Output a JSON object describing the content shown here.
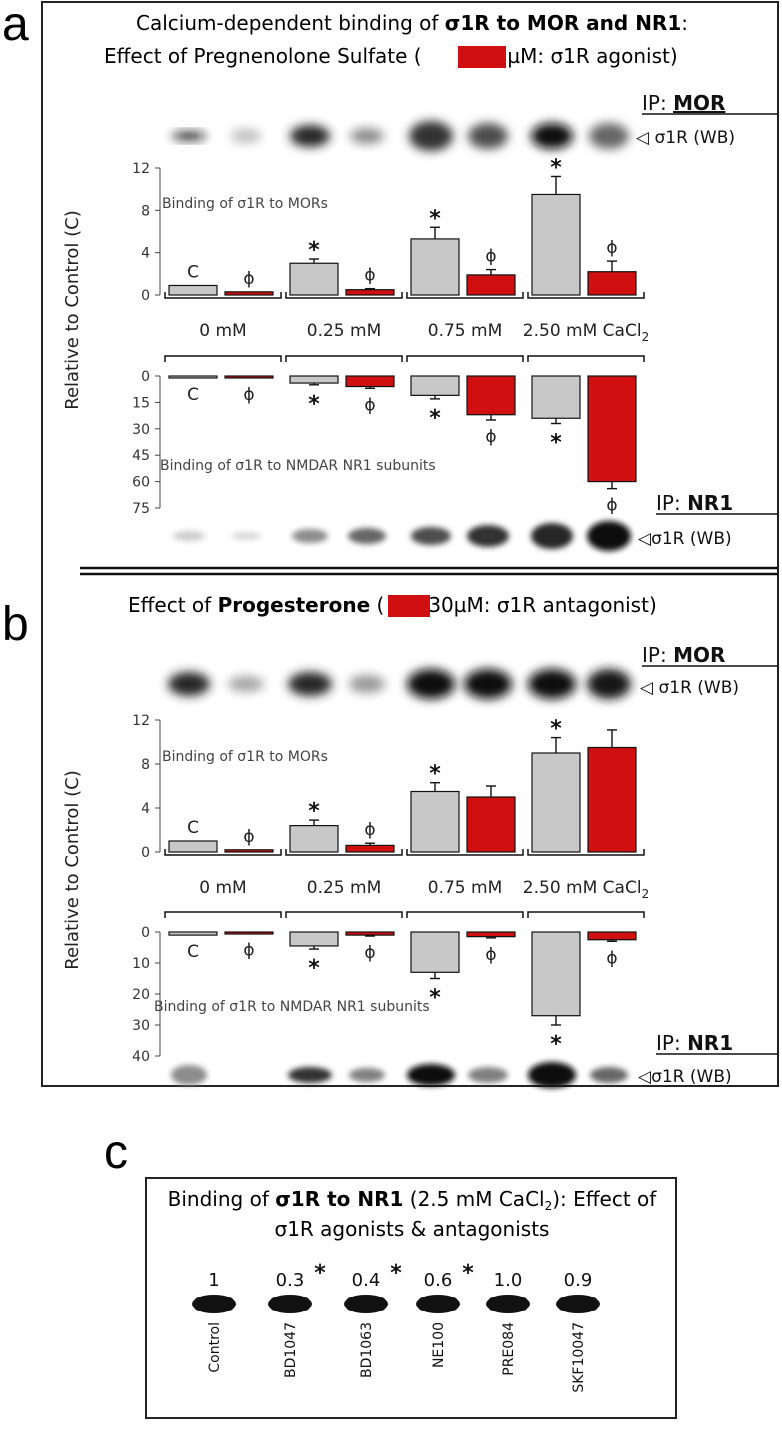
{
  "panel_a": {
    "letter": "a",
    "title_line1_pre": "Calcium-dependent binding of ",
    "title_line1_bold": "σ1R to MOR and NR1",
    "title_line1_post": ":",
    "title_line2_pre": "Effect of Pregnenolone Sulfate (",
    "title_line2_post": "30 µM: σ1R agonist)",
    "ip_top_prefix": "IP: ",
    "ip_top_target": "MOR",
    "wb_label": "σ1R (WB)",
    "ip_bottom_prefix": "IP: ",
    "ip_bottom_target": "NR1",
    "ylabel": "Relative to Control (C)"
  },
  "panel_b": {
    "letter": "b",
    "title_pre": "Effect of ",
    "title_bold": "Progesterone",
    "title_mid": " (",
    "title_post": "30µM: σ1R antagonist)",
    "ip_top_prefix": "IP: ",
    "ip_top_target": "MOR",
    "wb_label": "σ1R (WB)",
    "ip_bottom_prefix": "IP: ",
    "ip_bottom_target": "NR1",
    "ylabel": "Relative to Control (C)"
  },
  "conditions": [
    "0 mM",
    "0.25 mM",
    "0.75 mM",
    "2.50 mM CaCl"
  ],
  "cacl_subscript": "2",
  "marks": {
    "control": "C",
    "star": "*",
    "phi": "ϕ"
  },
  "colors": {
    "control_bar": "#c8c8c8",
    "treated_bar": "#d01010",
    "frame": "#222222"
  },
  "chart_data": [
    {
      "type": "bar",
      "panel": "a-top",
      "annotation": "Binding of σ1R to MORs",
      "categories": [
        "0 mM",
        "0.25 mM",
        "0.75 mM",
        "2.50 mM CaCl2"
      ],
      "series": [
        {
          "values": [
            0.9,
            3.0,
            5.3,
            9.5
          ],
          "errors": [
            0,
            0.4,
            1.1,
            1.7
          ]
        },
        {
          "values": [
            0.3,
            0.5,
            1.9,
            2.2
          ],
          "errors": [
            0,
            0.1,
            0.5,
            1.0
          ]
        }
      ],
      "ylim": [
        0,
        12
      ],
      "yticks": [
        0,
        4,
        8,
        12
      ],
      "labels_control": [
        "C",
        "*",
        "*",
        "*"
      ],
      "labels_treated": [
        "ϕ",
        "ϕ",
        "ϕ",
        "ϕ"
      ]
    },
    {
      "type": "bar",
      "panel": "a-bottom",
      "annotation": "Binding of σ1R to NMDAR NR1 subunits",
      "categories": [
        "0 mM",
        "0.25 mM",
        "0.75 mM",
        "2.50 mM CaCl2"
      ],
      "series": [
        {
          "values": [
            1,
            4,
            11,
            24
          ],
          "errors": [
            0,
            1,
            2,
            3
          ]
        },
        {
          "values": [
            1,
            6,
            22,
            60
          ],
          "errors": [
            0,
            1,
            3,
            4
          ]
        }
      ],
      "ylim": [
        0,
        75
      ],
      "yticks": [
        0,
        15,
        30,
        45,
        60,
        75
      ],
      "inverted": true,
      "labels_control": [
        "C",
        "*",
        "*",
        "*"
      ],
      "labels_treated": [
        "ϕ",
        "ϕ",
        "ϕ",
        "ϕ"
      ]
    },
    {
      "type": "bar",
      "panel": "b-top",
      "annotation": "Binding of σ1R to MORs",
      "categories": [
        "0 mM",
        "0.25 mM",
        "0.75 mM",
        "2.50 mM CaCl2"
      ],
      "series": [
        {
          "values": [
            1.0,
            2.4,
            5.5,
            9.0
          ],
          "errors": [
            0,
            0.5,
            0.8,
            1.4
          ]
        },
        {
          "values": [
            0.2,
            0.6,
            5.0,
            9.5
          ],
          "errors": [
            0,
            0.2,
            1.0,
            1.6
          ]
        }
      ],
      "ylim": [
        0,
        12
      ],
      "yticks": [
        0,
        4,
        8,
        12
      ],
      "labels_control": [
        "C",
        "*",
        "*",
        "*"
      ],
      "labels_treated": [
        "ϕ",
        "ϕ",
        "",
        ""
      ]
    },
    {
      "type": "bar",
      "panel": "b-bottom",
      "annotation": "Binding of σ1R to NMDAR NR1 subunits",
      "categories": [
        "0 mM",
        "0.25 mM",
        "0.75 mM",
        "2.50 mM CaCl2"
      ],
      "series": [
        {
          "values": [
            1,
            4.5,
            13,
            27
          ],
          "errors": [
            0,
            1,
            2,
            3
          ]
        },
        {
          "values": [
            0.5,
            1,
            1.5,
            2.5
          ],
          "errors": [
            0,
            0.3,
            0.4,
            0.5
          ]
        }
      ],
      "ylim": [
        0,
        40
      ],
      "yticks": [
        0,
        10,
        20,
        30,
        40
      ],
      "inverted": true,
      "labels_control": [
        "C",
        "*",
        "*",
        "*"
      ],
      "labels_treated": [
        "ϕ",
        "ϕ",
        "ϕ",
        "ϕ"
      ]
    }
  ],
  "panel_c": {
    "letter": "c",
    "title_line1_pre": "Binding of ",
    "title_line1_bold": "σ1R to NR1",
    "title_line1_mid": " (2.5 mM CaCl",
    "title_line1_sub": "2",
    "title_line1_post": "): Effect of",
    "title_line2": "σ1R agonists & antagonists",
    "lanes": [
      {
        "label": "Control",
        "value": "1",
        "star": ""
      },
      {
        "label": "BD1047",
        "value": "0.3",
        "star": "*"
      },
      {
        "label": "BD1063",
        "value": "0.4",
        "star": "*"
      },
      {
        "label": "NE100",
        "value": "0.6",
        "star": "*"
      },
      {
        "label": "PRE084",
        "value": "1.0",
        "star": ""
      },
      {
        "label": "SKF10047",
        "value": "0.9",
        "star": ""
      }
    ]
  }
}
